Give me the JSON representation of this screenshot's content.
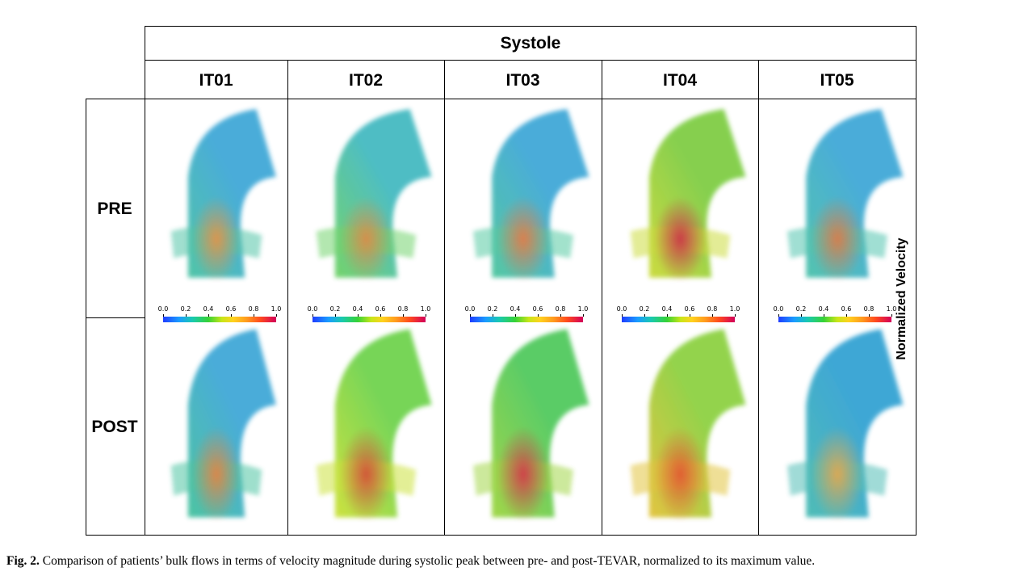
{
  "header": {
    "title": "Systole"
  },
  "columns": [
    "IT01",
    "IT02",
    "IT03",
    "IT04",
    "IT05"
  ],
  "rows": [
    "PRE",
    "POST"
  ],
  "colorbar": {
    "ticks": [
      "0.0",
      "0.2",
      "0.4",
      "0.6",
      "0.8",
      "1.0"
    ]
  },
  "side_label": "Normalized Velocity",
  "caption": {
    "label": "Fig. 2.",
    "text": "Comparison of patients’ bulk flows in terms of velocity magnitude during systolic peak between pre- and post-TEVAR, normalized to its maximum value."
  },
  "colors": {
    "low": "#1f3cff",
    "mid": "#36d236",
    "high": "#d2005a"
  }
}
